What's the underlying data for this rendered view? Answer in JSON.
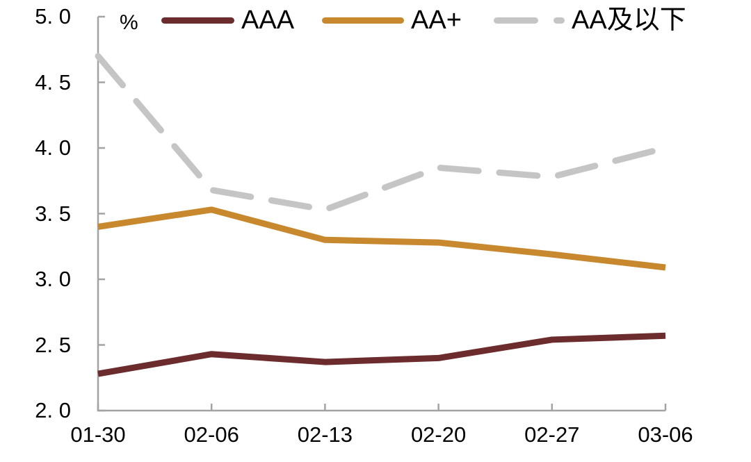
{
  "chart_data": {
    "type": "line",
    "unit_label": "%",
    "categories": [
      "01-30",
      "02-06",
      "02-13",
      "02-20",
      "02-27",
      "03-06"
    ],
    "series": [
      {
        "name": "AAA",
        "color": "#6C2C2E",
        "line_style": "solid",
        "values": [
          2.28,
          2.43,
          2.37,
          2.4,
          2.54,
          2.57
        ]
      },
      {
        "name": "AA+",
        "color": "#C8892E",
        "line_style": "solid",
        "values": [
          3.4,
          3.53,
          3.3,
          3.28,
          3.19,
          3.09
        ]
      },
      {
        "name": "AA及以下",
        "color": "#C5C5C5",
        "line_style": "dashed",
        "values": [
          4.7,
          3.68,
          3.53,
          3.85,
          3.78,
          4.0
        ]
      }
    ],
    "ylim": [
      2.0,
      5.0
    ],
    "yticks": [
      5.0,
      4.5,
      4.0,
      3.5,
      3.0,
      2.5,
      2.0
    ],
    "ytick_labels": [
      "5. 0",
      "4. 5",
      "4. 0",
      "3. 5",
      "3. 0",
      "2. 5",
      "2. 0"
    ],
    "xlabel": "",
    "ylabel": "%",
    "grid": false,
    "legend_position": "top",
    "axis_color": "#A3A3A3",
    "text_color": "#000000"
  }
}
